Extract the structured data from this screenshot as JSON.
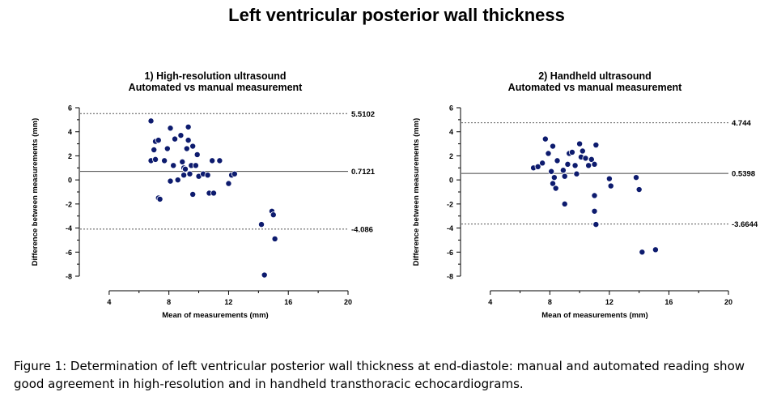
{
  "title": "Left ventricular posterior wall thickness",
  "caption": "Figure 1: Determination of left ventricular posterior wall thickness at end-diastole: manual and automated reading show good agreement in high-resolution and in handheld transthoracic echocardiograms.",
  "colors": {
    "point": "#0d1b6e",
    "axis": "#000000",
    "limit_line": "#555555"
  },
  "chart_data": [
    {
      "type": "scatter",
      "title": "1) High-resolution ultrasound",
      "subtitle": "Automated vs manual measurement",
      "xlabel": "Mean of measurements (mm)",
      "ylabel": "Difference between measurements (mm)",
      "xlim": [
        2,
        20
      ],
      "ylim": [
        -8.8,
        6.4
      ],
      "xticks": [
        4,
        8,
        12,
        16,
        20
      ],
      "yticks": [
        6,
        4,
        2,
        0,
        -2,
        -4,
        -6,
        -8
      ],
      "mean_diff": 0.7121,
      "upper_loa": 5.5102,
      "lower_loa": -4.086,
      "lines": [
        {
          "value": 5.5102,
          "label": "5.5102",
          "style": "dashed"
        },
        {
          "value": 0.7121,
          "label": "0.7121",
          "style": "solid"
        },
        {
          "value": -4.086,
          "label": "-4.086",
          "style": "dashed"
        }
      ],
      "points": [
        [
          6.8,
          4.9
        ],
        [
          6.8,
          1.6
        ],
        [
          7.0,
          2.5
        ],
        [
          7.1,
          1.7
        ],
        [
          7.1,
          3.2
        ],
        [
          7.3,
          3.3
        ],
        [
          7.3,
          -1.5
        ],
        [
          7.4,
          -1.6
        ],
        [
          7.7,
          1.6
        ],
        [
          7.9,
          2.6
        ],
        [
          8.1,
          4.3
        ],
        [
          8.1,
          -0.1
        ],
        [
          8.3,
          1.2
        ],
        [
          8.4,
          3.4
        ],
        [
          8.6,
          0.0
        ],
        [
          8.8,
          3.7
        ],
        [
          8.9,
          1.5
        ],
        [
          9.0,
          1.0
        ],
        [
          9.0,
          0.4
        ],
        [
          9.1,
          0.9
        ],
        [
          9.2,
          2.6
        ],
        [
          9.3,
          3.3
        ],
        [
          9.3,
          4.4
        ],
        [
          9.4,
          0.5
        ],
        [
          9.5,
          1.2
        ],
        [
          9.6,
          2.8
        ],
        [
          9.6,
          -1.2
        ],
        [
          9.8,
          1.2
        ],
        [
          9.9,
          2.1
        ],
        [
          10.0,
          0.3
        ],
        [
          10.3,
          0.5
        ],
        [
          10.6,
          0.4
        ],
        [
          10.7,
          -1.1
        ],
        [
          10.9,
          1.6
        ],
        [
          11.0,
          -1.1
        ],
        [
          11.4,
          1.6
        ],
        [
          12.0,
          -0.3
        ],
        [
          12.2,
          0.4
        ],
        [
          12.4,
          0.5
        ],
        [
          14.2,
          -3.7
        ],
        [
          14.4,
          -7.9
        ],
        [
          14.9,
          -2.6
        ],
        [
          15.0,
          -2.9
        ],
        [
          15.1,
          -4.9
        ]
      ]
    },
    {
      "type": "scatter",
      "title": "2) Handheld ultrasound",
      "subtitle": "Automated vs manual measurement",
      "xlabel": "Mean of measurements (mm)",
      "ylabel": "Difference between measurements (mm)",
      "xlim": [
        2,
        20
      ],
      "ylim": [
        -8.8,
        6.4
      ],
      "xticks": [
        4,
        8,
        12,
        16,
        20
      ],
      "yticks": [
        6,
        4,
        2,
        0,
        -2,
        -4,
        -6,
        -8
      ],
      "mean_diff": 0.5398,
      "upper_loa": 4.744,
      "lower_loa": -3.6644,
      "lines": [
        {
          "value": 4.744,
          "label": "4.744",
          "style": "dashed"
        },
        {
          "value": 0.5398,
          "label": "0.5398",
          "style": "solid"
        },
        {
          "value": -3.6644,
          "label": "-3.6644",
          "style": "dashed"
        }
      ],
      "points": [
        [
          6.9,
          1.0
        ],
        [
          7.2,
          1.1
        ],
        [
          7.5,
          1.4
        ],
        [
          7.7,
          3.4
        ],
        [
          7.9,
          2.2
        ],
        [
          8.2,
          2.8
        ],
        [
          8.1,
          0.7
        ],
        [
          8.2,
          -0.3
        ],
        [
          8.3,
          0.2
        ],
        [
          8.4,
          -0.7
        ],
        [
          8.5,
          1.6
        ],
        [
          8.9,
          0.8
        ],
        [
          9.0,
          0.3
        ],
        [
          9.2,
          1.3
        ],
        [
          9.3,
          2.2
        ],
        [
          9.5,
          2.3
        ],
        [
          9.7,
          1.2
        ],
        [
          9.8,
          0.5
        ],
        [
          10.0,
          3.0
        ],
        [
          10.1,
          1.9
        ],
        [
          10.2,
          2.4
        ],
        [
          10.4,
          1.8
        ],
        [
          10.6,
          1.2
        ],
        [
          10.8,
          1.7
        ],
        [
          11.0,
          1.3
        ],
        [
          11.1,
          2.9
        ],
        [
          9.0,
          -2.0
        ],
        [
          11.0,
          -1.3
        ],
        [
          11.0,
          -2.6
        ],
        [
          11.1,
          -3.7
        ],
        [
          12.0,
          0.1
        ],
        [
          12.1,
          -0.5
        ],
        [
          13.8,
          0.2
        ],
        [
          14.0,
          -0.8
        ],
        [
          14.2,
          -6.0
        ],
        [
          15.1,
          -5.8
        ]
      ]
    }
  ]
}
